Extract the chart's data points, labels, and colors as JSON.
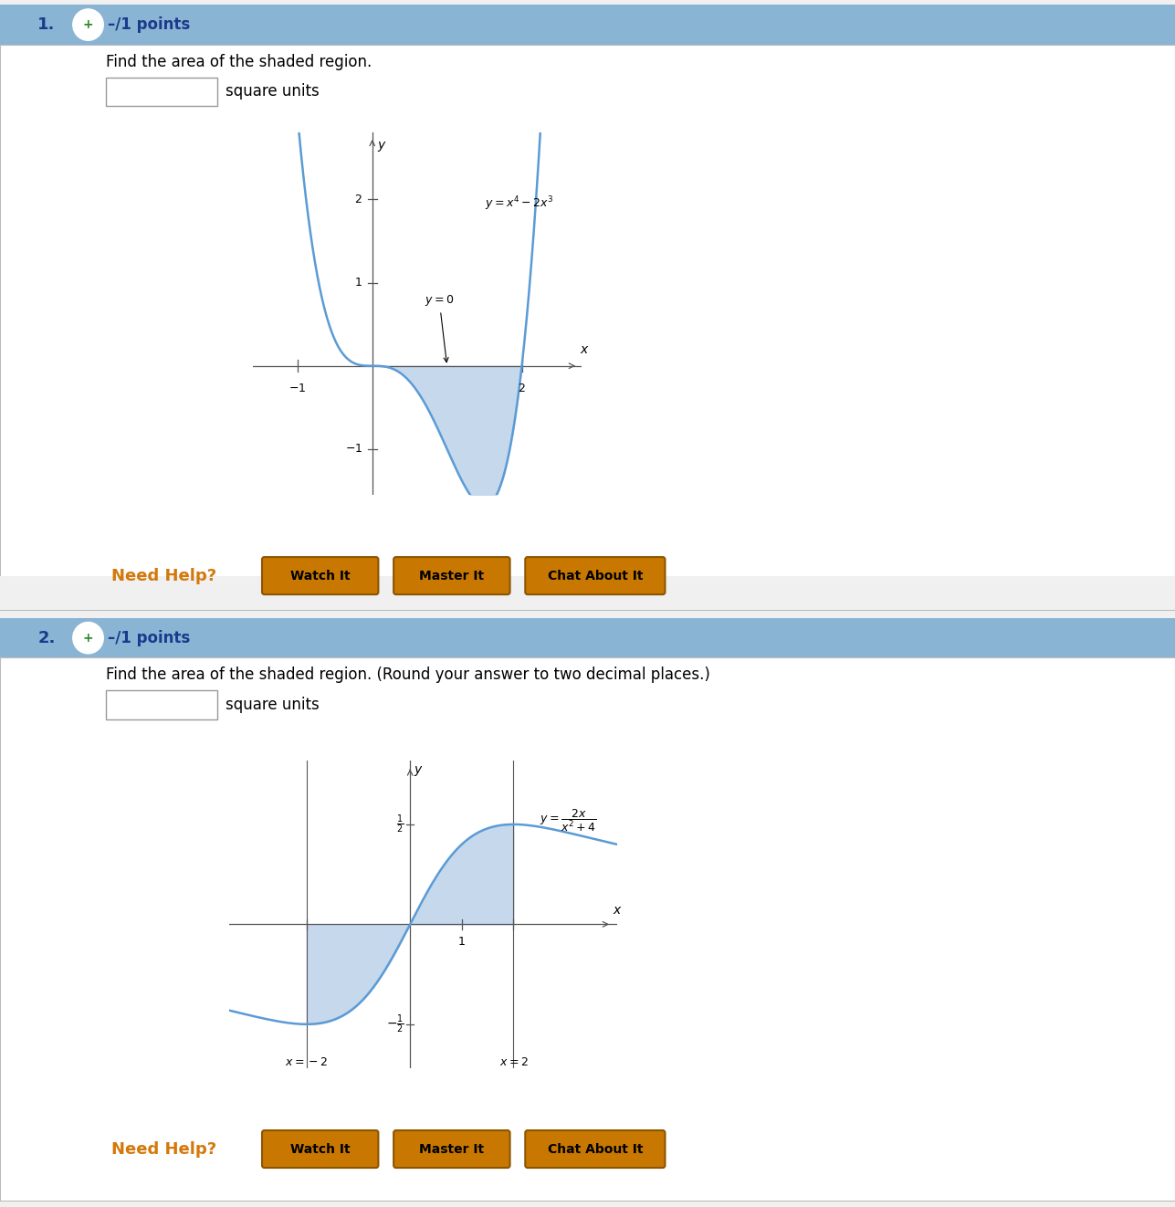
{
  "bg_color": "#f0f0f0",
  "panel_bg": "#ffffff",
  "header_color": "#8ab4d4",
  "header_text_color": "#1a3a8c",
  "problem1": {
    "number": "1.",
    "points_text": "–/1 points",
    "question": "Find the area of the shaded region.",
    "subtext": "square units",
    "curve_color": "#5b9bd5",
    "shade_color": "#c5d8ec",
    "xlim": [
      -1.6,
      2.8
    ],
    "ylim": [
      -1.55,
      2.8
    ]
  },
  "problem2": {
    "number": "2.",
    "points_text": "–/1 points",
    "question": "Find the area of the shaded region. (Round your answer to two decimal places.)",
    "subtext": "square units",
    "curve_color": "#5b9bd5",
    "shade_color": "#c5d8ec",
    "xlim": [
      -3.5,
      4.0
    ],
    "ylim": [
      -0.72,
      0.82
    ]
  },
  "button_color": "#c87800",
  "button_edge_color": "#8b5500",
  "button_text_color": "#000000",
  "button_labels": [
    "Watch It",
    "Master It",
    "Chat About It"
  ],
  "need_help_color": "#d4780a",
  "circle_bg": "#ffffff",
  "circle_color": "#2d8a2d",
  "plus_color": "#2d8a2d"
}
